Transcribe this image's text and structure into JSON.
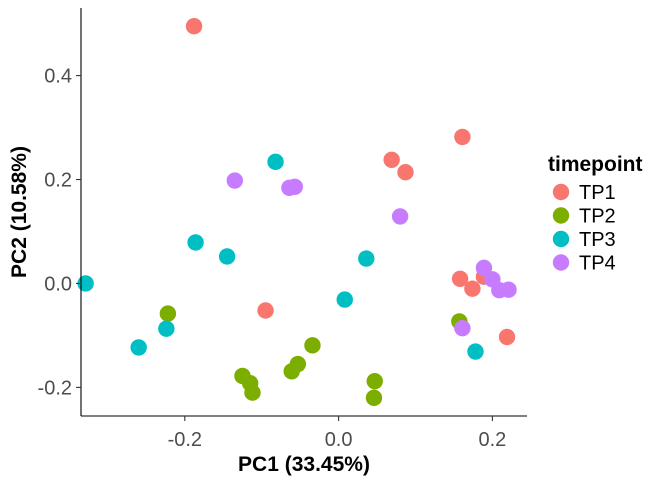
{
  "chart_data": {
    "type": "scatter",
    "xlabel": "PC1 (33.45%)",
    "ylabel": "PC2 (10.58%)",
    "xlim": [
      -0.335,
      0.245
    ],
    "ylim": [
      -0.255,
      0.53
    ],
    "x_ticks": [
      -0.2,
      0.0,
      0.2
    ],
    "x_tick_labels": [
      "-0.2",
      "0.0",
      "0.2"
    ],
    "y_ticks": [
      -0.2,
      0.0,
      0.2,
      0.4
    ],
    "y_tick_labels": [
      "-0.2",
      "0.0",
      "0.2",
      "0.4"
    ],
    "grid": false,
    "legend": {
      "title": "timepoint",
      "position": "right"
    },
    "series": [
      {
        "name": "TP1",
        "color": "#F8766D",
        "points": [
          {
            "x": -0.188,
            "y": 0.495
          },
          {
            "x": 0.161,
            "y": 0.282
          },
          {
            "x": 0.069,
            "y": 0.238
          },
          {
            "x": 0.087,
            "y": 0.214
          },
          {
            "x": 0.158,
            "y": 0.009
          },
          {
            "x": 0.174,
            "y": -0.01
          },
          {
            "x": 0.189,
            "y": 0.013
          },
          {
            "x": -0.095,
            "y": -0.052
          },
          {
            "x": 0.219,
            "y": -0.103
          }
        ]
      },
      {
        "name": "TP2",
        "color": "#7CAE00",
        "points": [
          {
            "x": -0.222,
            "y": -0.058
          },
          {
            "x": -0.034,
            "y": -0.119
          },
          {
            "x": -0.053,
            "y": -0.155
          },
          {
            "x": -0.061,
            "y": -0.169
          },
          {
            "x": -0.125,
            "y": -0.178
          },
          {
            "x": -0.115,
            "y": -0.192
          },
          {
            "x": -0.112,
            "y": -0.21
          },
          {
            "x": 0.047,
            "y": -0.188
          },
          {
            "x": 0.046,
            "y": -0.22
          },
          {
            "x": 0.157,
            "y": -0.073
          }
        ]
      },
      {
        "name": "TP3",
        "color": "#00BFC4",
        "points": [
          {
            "x": -0.082,
            "y": 0.234
          },
          {
            "x": -0.186,
            "y": 0.079
          },
          {
            "x": -0.145,
            "y": 0.052
          },
          {
            "x": -0.329,
            "y": 0.0
          },
          {
            "x": 0.036,
            "y": 0.048
          },
          {
            "x": 0.008,
            "y": -0.031
          },
          {
            "x": -0.224,
            "y": -0.087
          },
          {
            "x": -0.26,
            "y": -0.123
          },
          {
            "x": 0.178,
            "y": -0.131
          }
        ]
      },
      {
        "name": "TP4",
        "color": "#C77CFF",
        "points": [
          {
            "x": -0.135,
            "y": 0.198
          },
          {
            "x": -0.064,
            "y": 0.184
          },
          {
            "x": -0.057,
            "y": 0.186
          },
          {
            "x": 0.08,
            "y": 0.129
          },
          {
            "x": 0.189,
            "y": 0.03
          },
          {
            "x": 0.2,
            "y": 0.008
          },
          {
            "x": 0.209,
            "y": -0.013
          },
          {
            "x": 0.221,
            "y": -0.012
          },
          {
            "x": 0.161,
            "y": -0.086
          }
        ]
      }
    ]
  }
}
